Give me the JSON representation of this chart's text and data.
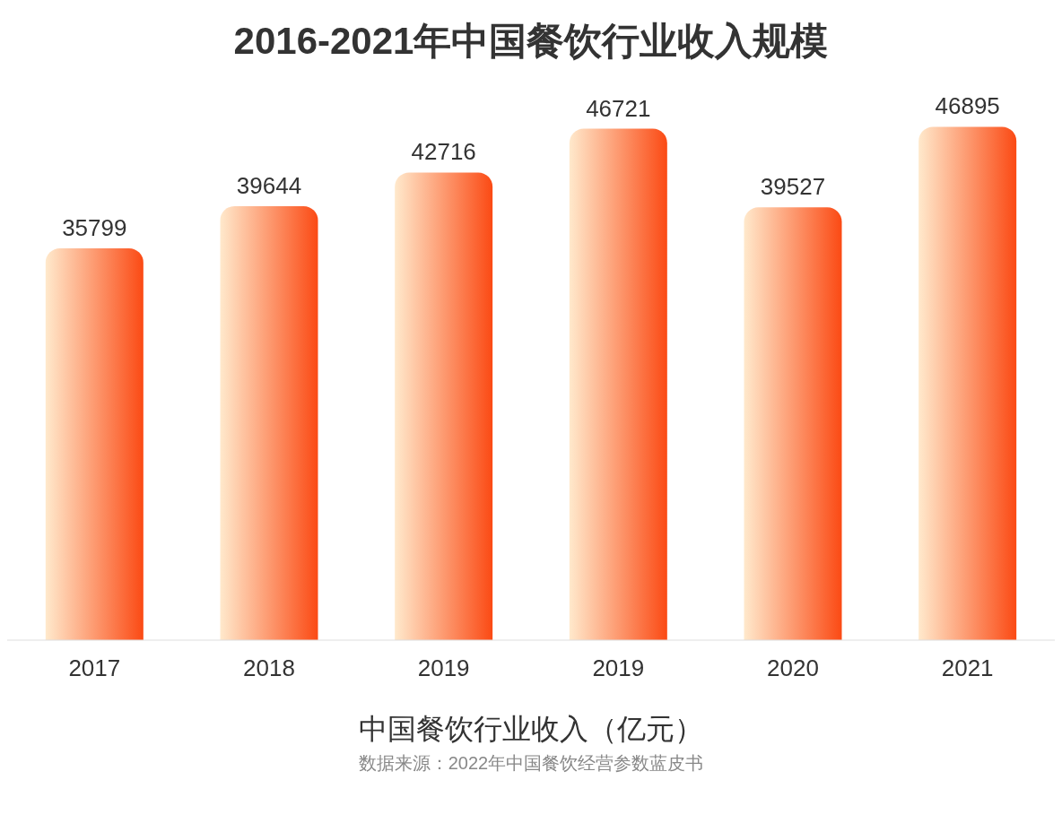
{
  "chart_data": {
    "type": "bar",
    "title": "2016-2021年中国餐饮行业收入规模",
    "xlabel": "中国餐饮行业收入（亿元）",
    "annotations": [
      "数据来源：2022年中国餐饮经营参数蓝皮书"
    ],
    "categories": [
      "2017",
      "2018",
      "2019",
      "2019",
      "2020",
      "2021"
    ],
    "values": [
      35799,
      39644,
      42716,
      46721,
      39527,
      46895
    ],
    "color": "#fb4a14",
    "data_labels": true,
    "tick_labels": "x"
  }
}
